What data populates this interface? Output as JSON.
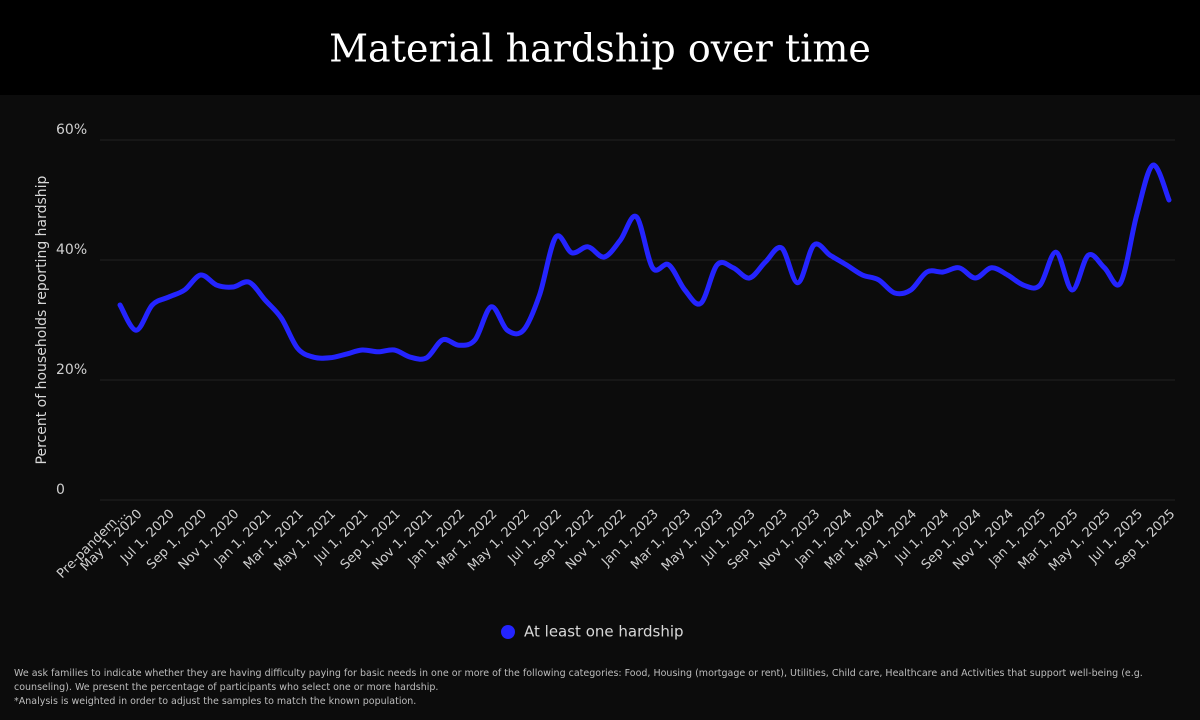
{
  "chart_data": {
    "type": "line",
    "title": "Material hardship over time",
    "y_label": "Percent of households reporting hardship",
    "categories": [
      "Pre-pandem...",
      "May 1, 2020",
      null,
      "Jul 1, 2020",
      null,
      "Sep 1, 2020",
      null,
      "Nov 1, 2020",
      null,
      "Jan 1, 2021",
      null,
      "Mar 1, 2021",
      null,
      "May 1, 2021",
      null,
      "Jul 1, 2021",
      null,
      "Sep 1, 2021",
      null,
      "Nov 1, 2021",
      null,
      "Jan 1, 2022",
      null,
      "Mar 1, 2022",
      null,
      "May 1, 2022",
      null,
      "Jul 1, 2022",
      null,
      "Sep 1, 2022",
      null,
      "Nov 1, 2022",
      null,
      "Jan 1, 2023",
      null,
      "Mar 1, 2023",
      null,
      "May 1, 2023",
      null,
      "Jul 1, 2023",
      null,
      "Sep 1, 2023",
      null,
      "Nov 1, 2023",
      null,
      "Jan 1, 2024",
      null,
      "Mar 1, 2024",
      null,
      "May 1, 2024",
      null,
      "Jul 1, 2024",
      null,
      "Sep 1, 2024",
      null,
      "Nov 1, 2024",
      null,
      "Jan 1, 2025",
      null,
      "Mar 1, 2025",
      null,
      "May 1, 2025",
      null,
      "Jul 1, 2025",
      null,
      "Sep 1, 2025"
    ],
    "series": [
      {
        "name": "At least one hardship",
        "color": "#2424ff",
        "values": [
          32.5,
          28.3,
          32.5,
          33.8,
          35,
          37.5,
          35.8,
          35.5,
          36.3,
          33.3,
          30.3,
          25.3,
          23.8,
          23.7,
          24.3,
          25,
          24.7,
          25,
          23.8,
          23.7,
          26.7,
          25.8,
          26.7,
          32.2,
          28.3,
          28.3,
          34.2,
          43.8,
          41.2,
          42.2,
          40.5,
          43.3,
          47.2,
          38.7,
          39.2,
          35,
          32.8,
          39.2,
          38.7,
          37,
          39.7,
          42,
          36.2,
          42.5,
          40.8,
          39.2,
          37.5,
          36.7,
          34.5,
          35,
          38,
          38,
          38.7,
          37,
          38.7,
          37.5,
          35.8,
          35.8,
          41.3,
          35,
          40.8,
          38.7,
          36.2,
          47.5,
          55.8,
          50
        ]
      }
    ],
    "ylim": [
      0,
      60
    ],
    "yticks": [
      0,
      {
        "value": 20,
        "label": "20%"
      },
      {
        "value": 40,
        "label": "40%"
      },
      {
        "value": 60,
        "label": "60%"
      }
    ],
    "grid": true,
    "legend": "bottom",
    "footnotes": [
      "We ask families to indicate whether they are having difficulty paying for basic needs in one or more of the following categories: Food, Housing (mortgage or rent), Utilities, Child care, Healthcare and Activities that support well-being (e.g. counseling). We present the percentage of participants who select one or more hardship.",
      "*Analysis is weighted in order to adjust the samples to match the known population."
    ]
  }
}
